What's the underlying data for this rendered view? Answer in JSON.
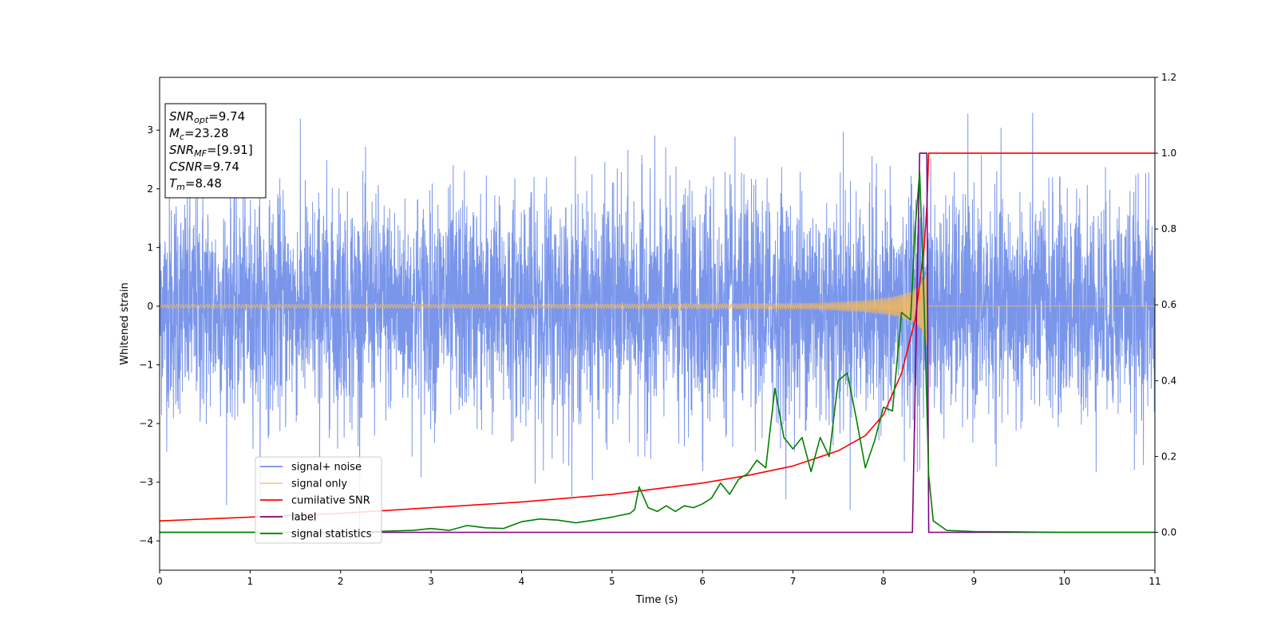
{
  "chart_data": {
    "type": "line",
    "xlabel": "Time (s)",
    "ylabel": "Whitened strain",
    "xlim": [
      0,
      11
    ],
    "ylim": [
      -4.5,
      3.9
    ],
    "y2lim": [
      -0.1,
      1.2
    ],
    "xticks": [
      "0",
      "1",
      "2",
      "3",
      "4",
      "5",
      "6",
      "7",
      "8",
      "9",
      "10",
      "11"
    ],
    "yticks": [
      "3",
      "2",
      "1",
      "0",
      "−1",
      "−2",
      "−3",
      "−4"
    ],
    "yticks_values": [
      3,
      2,
      1,
      0,
      -1,
      -2,
      -3,
      -4
    ],
    "y2ticks": [
      "1.2",
      "1.0",
      "0.8",
      "0.6",
      "0.4",
      "0.2",
      "0.0"
    ],
    "y2ticks_values": [
      1.2,
      1.0,
      0.8,
      0.6,
      0.4,
      0.2,
      0.0
    ],
    "legend_position": "lower-left",
    "annotation": [
      {
        "base": "SNR",
        "sub": "opt",
        "value": "=9.74"
      },
      {
        "base": "M",
        "sub": "c",
        "value": "=23.28"
      },
      {
        "base": "SNR",
        "sub": "MF",
        "value": "=[9.91]"
      },
      {
        "base": "CSNR",
        "sub": "",
        "value": "=9.74"
      },
      {
        "base": "T",
        "sub": "m",
        "value": "=8.48"
      }
    ],
    "series": [
      {
        "name": "signal+ noise",
        "color": "#4169e1",
        "axis": "left",
        "style": "noise",
        "description_values": {
          "typical_amplitude": 1.3,
          "peak_max": 3.5,
          "peak_min": -4.2
        }
      },
      {
        "name": "signal only",
        "color": "#f5b85a",
        "axis": "left",
        "style": "chirp",
        "chirp": {
          "merger_time": 8.48,
          "peak_amplitude": 1.0
        }
      },
      {
        "name": "cumilative SNR",
        "color": "#ff0000",
        "axis": "right",
        "x": [
          0,
          1,
          2,
          3,
          4,
          5,
          6,
          6.5,
          7,
          7.5,
          7.8,
          8.0,
          8.2,
          8.35,
          8.45,
          8.48,
          8.5,
          9,
          10,
          11
        ],
        "y": [
          0.03,
          0.04,
          0.05,
          0.065,
          0.08,
          0.1,
          0.13,
          0.15,
          0.175,
          0.215,
          0.255,
          0.31,
          0.42,
          0.56,
          0.75,
          0.86,
          1.0,
          1.0,
          1.0,
          1.0
        ]
      },
      {
        "name": "label",
        "color": "#800080",
        "axis": "right",
        "x": [
          0,
          8.32,
          8.4,
          8.48,
          8.5,
          11
        ],
        "y": [
          0,
          0,
          1,
          1,
          0,
          0
        ]
      },
      {
        "name": "signal statistics",
        "color": "#008000",
        "axis": "right",
        "x": [
          0,
          0.5,
          1,
          1.5,
          2,
          2.5,
          2.8,
          3,
          3.2,
          3.4,
          3.6,
          3.8,
          4,
          4.2,
          4.4,
          4.6,
          4.8,
          5,
          5.2,
          5.25,
          5.3,
          5.4,
          5.5,
          5.6,
          5.7,
          5.8,
          5.9,
          6,
          6.1,
          6.2,
          6.3,
          6.4,
          6.5,
          6.6,
          6.7,
          6.8,
          6.9,
          7,
          7.1,
          7.2,
          7.3,
          7.4,
          7.5,
          7.6,
          7.7,
          7.8,
          7.9,
          8.0,
          8.1,
          8.2,
          8.3,
          8.35,
          8.4,
          8.45,
          8.5,
          8.55,
          8.7,
          9,
          10,
          11
        ],
        "y": [
          0.0,
          0.0,
          0.0,
          0.0,
          0.0,
          0.003,
          0.005,
          0.01,
          0.005,
          0.018,
          0.012,
          0.01,
          0.028,
          0.035,
          0.032,
          0.025,
          0.032,
          0.04,
          0.05,
          0.06,
          0.12,
          0.065,
          0.055,
          0.07,
          0.055,
          0.07,
          0.065,
          0.075,
          0.09,
          0.13,
          0.1,
          0.14,
          0.155,
          0.19,
          0.17,
          0.38,
          0.25,
          0.22,
          0.25,
          0.16,
          0.25,
          0.2,
          0.4,
          0.42,
          0.3,
          0.17,
          0.24,
          0.33,
          0.32,
          0.58,
          0.56,
          0.8,
          0.95,
          0.6,
          0.15,
          0.03,
          0.005,
          0.002,
          0.0,
          0.0
        ]
      }
    ]
  }
}
